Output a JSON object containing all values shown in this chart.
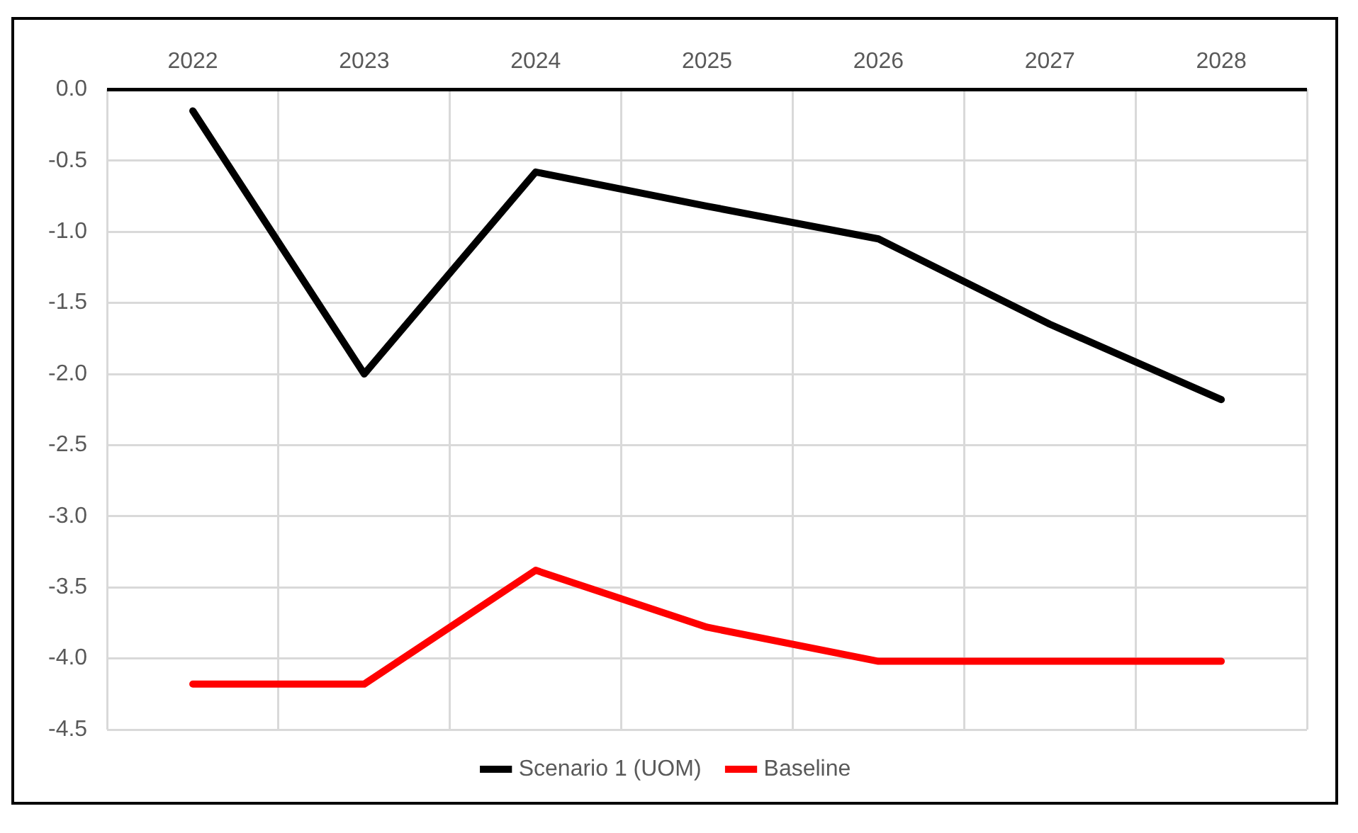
{
  "chart_data": {
    "type": "line",
    "categories": [
      "2022",
      "2023",
      "2024",
      "2025",
      "2026",
      "2027",
      "2028"
    ],
    "series": [
      {
        "name": "Scenario 1 (UOM)",
        "color": "#000000",
        "values": [
          -0.15,
          -2.0,
          -0.58,
          -0.82,
          -1.05,
          -1.65,
          -2.18
        ]
      },
      {
        "name": "Baseline",
        "color": "#ff0000",
        "values": [
          -4.18,
          -4.18,
          -3.38,
          -3.78,
          -4.02,
          -4.02,
          -4.02
        ]
      }
    ],
    "ylim": [
      -4.5,
      0
    ],
    "yticks": [
      {
        "value": 0,
        "label": "0.0"
      },
      {
        "value": -0.5,
        "label": "-0.5"
      },
      {
        "value": -1,
        "label": "-1.0"
      },
      {
        "value": -1.5,
        "label": "-1.5"
      },
      {
        "value": -2,
        "label": "-2.0"
      },
      {
        "value": -2.5,
        "label": "-2.5"
      },
      {
        "value": -3,
        "label": "-3.0"
      },
      {
        "value": -3.5,
        "label": "-3.5"
      },
      {
        "value": -4,
        "label": "-4.0"
      },
      {
        "value": -4.5,
        "label": "-4.5"
      }
    ],
    "grid": true,
    "legend": "bottom",
    "marker": "none",
    "line_style": "solid"
  }
}
